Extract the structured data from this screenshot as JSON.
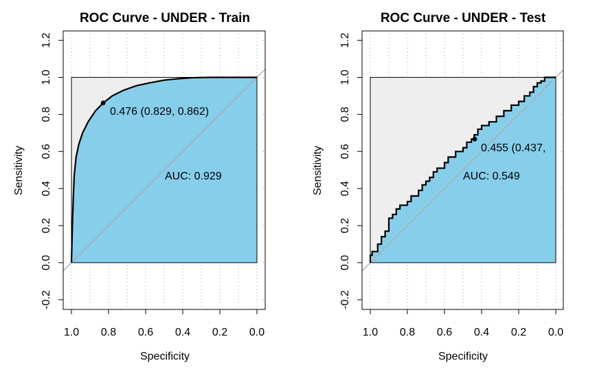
{
  "chart_data": [
    {
      "type": "line",
      "title": "ROC Curve - UNDER - Train",
      "xlabel": "Specificity",
      "ylabel": "Sensitivity",
      "xlim": [
        1.0,
        0.0
      ],
      "ylim": [
        -0.25,
        1.25
      ],
      "x_ticks": [
        "1.0",
        "0.8",
        "0.6",
        "0.4",
        "0.2",
        "0.0"
      ],
      "y_ticks": [
        "-0.2",
        "0.0",
        "0.2",
        "0.4",
        "0.6",
        "0.8",
        "1.0",
        "1.2"
      ],
      "grid": true,
      "fill_color": "#87ceeb",
      "outside_fill_color": "#eeeeee",
      "series": [
        {
          "specificity": [
            1.0,
            0.995,
            0.99,
            0.985,
            0.975,
            0.96,
            0.94,
            0.91,
            0.87,
            0.829,
            0.78,
            0.72,
            0.65,
            0.58,
            0.5,
            0.42,
            0.35,
            0.25,
            0.15,
            0.05,
            0.0
          ],
          "sensitivity": [
            0.0,
            0.2,
            0.35,
            0.47,
            0.57,
            0.64,
            0.7,
            0.76,
            0.82,
            0.862,
            0.9,
            0.93,
            0.955,
            0.97,
            0.985,
            0.993,
            0.998,
            1.0,
            1.0,
            1.0,
            1.0
          ]
        }
      ],
      "threshold_point": {
        "specificity": 0.829,
        "sensitivity": 0.862,
        "label": "0.476 (0.829, 0.862)"
      },
      "auc_label": "AUC: 0.929"
    },
    {
      "type": "line",
      "title": "ROC Curve - UNDER - Test",
      "xlabel": "Specificity",
      "ylabel": "Sensitivity",
      "xlim": [
        1.0,
        0.0
      ],
      "ylim": [
        -0.25,
        1.25
      ],
      "x_ticks": [
        "1.0",
        "0.8",
        "0.6",
        "0.4",
        "0.2",
        "0.0"
      ],
      "y_ticks": [
        "-0.2",
        "0.0",
        "0.2",
        "0.4",
        "0.6",
        "0.8",
        "1.0",
        "1.2"
      ],
      "grid": true,
      "fill_color": "#87ceeb",
      "outside_fill_color": "#eeeeee",
      "series": [
        {
          "specificity": [
            1.0,
            1.0,
            0.99,
            0.99,
            0.96,
            0.96,
            0.94,
            0.94,
            0.92,
            0.92,
            0.9,
            0.9,
            0.88,
            0.88,
            0.86,
            0.86,
            0.84,
            0.84,
            0.8,
            0.8,
            0.78,
            0.78,
            0.74,
            0.74,
            0.72,
            0.72,
            0.7,
            0.7,
            0.68,
            0.68,
            0.66,
            0.66,
            0.64,
            0.64,
            0.6,
            0.6,
            0.58,
            0.58,
            0.54,
            0.54,
            0.5,
            0.5,
            0.48,
            0.48,
            0.455,
            0.455,
            0.44,
            0.44,
            0.42,
            0.42,
            0.4,
            0.4,
            0.36,
            0.36,
            0.32,
            0.32,
            0.28,
            0.28,
            0.24,
            0.24,
            0.2,
            0.2,
            0.17,
            0.17,
            0.14,
            0.14,
            0.12,
            0.12,
            0.1,
            0.1,
            0.08,
            0.08,
            0.06,
            0.06,
            0.04,
            0.0
          ],
          "sensitivity": [
            0.0,
            0.04,
            0.04,
            0.06,
            0.06,
            0.1,
            0.1,
            0.14,
            0.14,
            0.17,
            0.17,
            0.24,
            0.24,
            0.26,
            0.26,
            0.29,
            0.29,
            0.31,
            0.31,
            0.33,
            0.33,
            0.36,
            0.36,
            0.39,
            0.39,
            0.42,
            0.42,
            0.44,
            0.44,
            0.46,
            0.46,
            0.49,
            0.49,
            0.51,
            0.51,
            0.54,
            0.54,
            0.57,
            0.57,
            0.6,
            0.6,
            0.62,
            0.62,
            0.65,
            0.65,
            0.667,
            0.667,
            0.69,
            0.69,
            0.72,
            0.72,
            0.74,
            0.74,
            0.76,
            0.76,
            0.79,
            0.79,
            0.82,
            0.82,
            0.85,
            0.85,
            0.87,
            0.87,
            0.9,
            0.9,
            0.92,
            0.92,
            0.95,
            0.95,
            0.97,
            0.97,
            0.98,
            0.98,
            1.0,
            1.0,
            1.0
          ]
        }
      ],
      "threshold_point": {
        "specificity": 0.437,
        "sensitivity": 0.667,
        "label": "0.455 (0.437,"
      },
      "auc_label": "AUC: 0.549"
    }
  ]
}
